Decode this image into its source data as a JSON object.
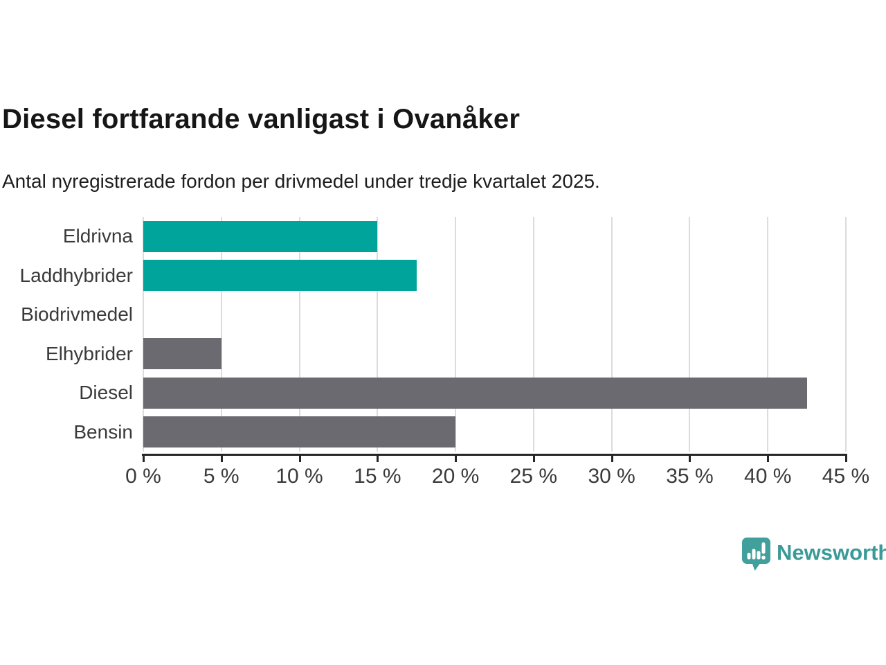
{
  "chart_data": {
    "type": "bar",
    "orientation": "horizontal",
    "title": "Diesel fortfarande vanligast i Ovanåker",
    "subtitle": "Antal nyregistrerade fordon per drivmedel under tredje kvartalet 2025.",
    "categories": [
      "Eldrivna",
      "Laddhybrider",
      "Biodrivmedel",
      "Elhybrider",
      "Diesel",
      "Bensin"
    ],
    "values": [
      15,
      17.5,
      0,
      5,
      42.5,
      20
    ],
    "unit": "%",
    "xlim": [
      0,
      45
    ],
    "x_ticks": [
      0,
      5,
      10,
      15,
      20,
      25,
      30,
      35,
      40,
      45
    ],
    "x_tick_labels": [
      "0 %",
      "5 %",
      "10 %",
      "15 %",
      "20 %",
      "25 %",
      "30 %",
      "35 %",
      "40 %",
      "45 %"
    ],
    "bar_colors": [
      "#00a49a",
      "#00a49a",
      "#00a49a",
      "#6b6a70",
      "#6b6a70",
      "#6b6a70"
    ],
    "grid": "vertical",
    "legend": "none"
  },
  "colors": {
    "teal_bar": "#00a49a",
    "gray_bar": "#6b6a70",
    "gridline": "#dcdcdd",
    "axis": "#262626",
    "label_text": "#3a3a3a",
    "brand_teal": "#3a9a97",
    "brand_icon_teal": "#41a09c"
  },
  "branding": {
    "logo_text": "Newsworthy",
    "logo_icon": "newsworthy-speech-bubble-bar-chart-icon"
  }
}
